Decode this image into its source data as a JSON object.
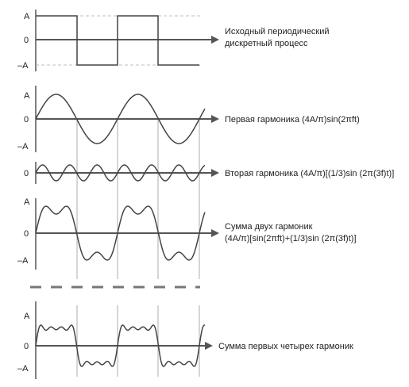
{
  "axis_labels": {
    "plus": "A",
    "zero": "0",
    "minus": "–A"
  },
  "panels": [
    {
      "id": "source",
      "caption_lines": [
        "Исходный периодический",
        "дискретный процесс"
      ],
      "levels": [
        "plus",
        "zero",
        "minus"
      ]
    },
    {
      "id": "h1",
      "caption_lines": [
        "Первая гармоника (4A/π)sin(2πft)"
      ],
      "levels": [
        "plus",
        "zero",
        "minus"
      ]
    },
    {
      "id": "h3",
      "caption_lines": [
        "Вторая гармоника (4A/π)[(1/3)sin (2π(3f)t)]"
      ],
      "levels": [
        "zero"
      ]
    },
    {
      "id": "sum2",
      "caption_lines": [
        "Сумма двух гармоник",
        "(4A/π)[sin(2πft)+(1/3)sin (2π(3f)t)]"
      ],
      "levels": [
        "plus",
        "zero",
        "minus"
      ]
    },
    {
      "id": "sum4",
      "caption_lines": [
        "Сумма первых четырех гармоник"
      ],
      "levels": [
        "plus",
        "zero",
        "minus"
      ]
    }
  ]
}
